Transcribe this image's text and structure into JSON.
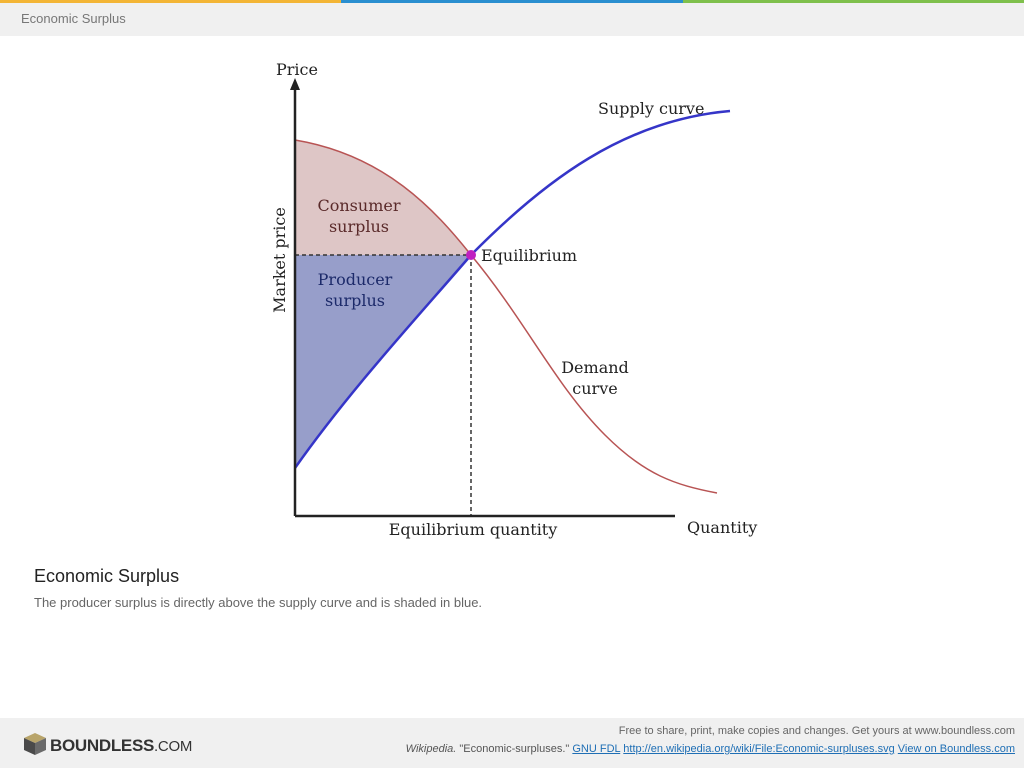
{
  "header": {
    "title": "Economic Surplus"
  },
  "diagram": {
    "y_axis_title": "Price",
    "x_axis_title": "Quantity",
    "y_axis_label": "Market price",
    "x_axis_label": "Equilibrium quantity",
    "supply_label": "Supply curve",
    "demand_label_1": "Demand",
    "demand_label_2": "curve",
    "equilibrium_label": "Equilibrium",
    "consumer_label_1": "Consumer",
    "consumer_label_2": "surplus",
    "producer_label_1": "Producer",
    "producer_label_2": "surplus",
    "colors": {
      "supply": "#3535c8",
      "demand": "#b85454",
      "consumer_fill": "#d8bcbc",
      "producer_fill": "#8c94c4",
      "equilibrium_point": "#c020c0"
    }
  },
  "caption": {
    "title": "Economic Surplus",
    "text": "The producer surplus is directly above the supply curve and is shaded in blue."
  },
  "footer": {
    "logo_main": "BOUNDLESS",
    "logo_suffix": ".COM",
    "line1": "Free to share, print, make copies and changes. Get yours at www.boundless.com",
    "source_italic": "Wikipedia.",
    "source_text": " \"Economic-surpluses.\" ",
    "license_link": "GNU FDL",
    "url_link": "http://en.wikipedia.org/wiki/File:Economic-surpluses.svg",
    "view_link": "View on Boundless.com"
  }
}
